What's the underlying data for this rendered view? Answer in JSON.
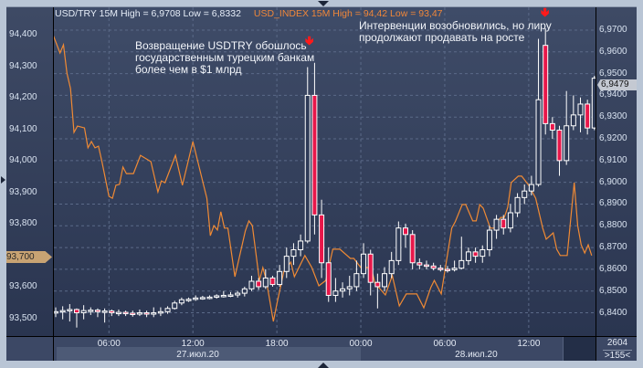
{
  "header": {
    "primary": "USD/TRY 15M High = 6,9708 Low = 6,8332",
    "secondary": "USD_INDEX 15M High = 94,42 Low = 93,47"
  },
  "annotations": [
    {
      "text": "Возвращение USDTRY обошлось\nгосударственным турецким банкам\nболее чем в $1 млрд",
      "icon": "red-down-arrow"
    },
    {
      "text": "Интервенции возобновились, но лиру\nпродолжают продавать на росте",
      "icon": "red-down-arrow"
    }
  ],
  "footer": {
    "bar_count": "2604",
    "visible_bars": ">155<"
  },
  "colors": {
    "candle_up": "#ffffff",
    "candle_down": "#e8174a",
    "index_line": "#f08a34",
    "background": "#34405c",
    "grid": "#5b6a88"
  },
  "chart_data": {
    "type": "candlestick+line",
    "title": "",
    "grid": true,
    "x_ticks": [
      "06:00",
      "12:00",
      "18:00",
      "00:00",
      "06:00",
      "12:00"
    ],
    "x_tick_times": [
      "27.07 06:00",
      "27.07 12:00",
      "27.07 18:00",
      "28.07 00:00",
      "28.07 06:00",
      "28.07 12:00"
    ],
    "date_labels": [
      {
        "text": "27.июл.20"
      },
      {
        "text": "28.июл.20"
      }
    ],
    "x_range": [
      "27.07 02:00",
      "28.07 16:30"
    ],
    "right_axis": {
      "series": "USD/TRY",
      "range": [
        6.8332,
        6.9708
      ],
      "ticks": [
        "6,9700",
        "6,9600",
        "6,9500",
        "6,9400",
        "6,9300",
        "6,9200",
        "6,9100",
        "6,9000",
        "6,8900",
        "6,8800",
        "6,8700",
        "6,8600",
        "6,8500",
        "6,8400"
      ],
      "tick_values": [
        6.97,
        6.96,
        6.95,
        6.94,
        6.93,
        6.92,
        6.91,
        6.9,
        6.89,
        6.88,
        6.87,
        6.86,
        6.85,
        6.84
      ],
      "last_value_label": "6,9479"
    },
    "left_axis": {
      "series": "USD_INDEX",
      "range": [
        93.47,
        94.42
      ],
      "ticks": [
        "94,400",
        "94,300",
        "94,200",
        "94,100",
        "94,000",
        "93,900",
        "93,800",
        "93,700",
        "93,600",
        "93,500"
      ],
      "tick_values": [
        94.4,
        94.3,
        94.2,
        94.1,
        94.0,
        93.9,
        93.8,
        93.7,
        93.6,
        93.5
      ],
      "last_value_label": "93,700"
    },
    "usdtry_candles": [
      [
        "27.07 02:00",
        6.84,
        6.8425,
        6.838,
        6.8405
      ],
      [
        "27.07 02:30",
        6.8405,
        6.843,
        6.837,
        6.841
      ],
      [
        "27.07 03:00",
        6.841,
        6.844,
        6.836,
        6.8415
      ],
      [
        "27.07 03:30",
        6.8415,
        6.842,
        6.8332,
        6.84
      ],
      [
        "27.07 04:00",
        6.84,
        6.8435,
        6.837,
        6.841
      ],
      [
        "27.07 04:30",
        6.841,
        6.8425,
        6.839,
        6.8412
      ],
      [
        "27.07 05:00",
        6.8412,
        6.842,
        6.838,
        6.8405
      ],
      [
        "27.07 05:30",
        6.8405,
        6.842,
        6.8355,
        6.8408
      ],
      [
        "27.07 06:00",
        6.8408,
        6.8415,
        6.8385,
        6.84
      ],
      [
        "27.07 06:30",
        6.84,
        6.8415,
        6.8385,
        6.8402
      ],
      [
        "27.07 07:00",
        6.8402,
        6.841,
        6.8385,
        6.8398
      ],
      [
        "27.07 07:30",
        6.8398,
        6.841,
        6.8382,
        6.8395
      ],
      [
        "27.07 08:00",
        6.8395,
        6.8415,
        6.8385,
        6.84
      ],
      [
        "27.07 08:30",
        6.84,
        6.841,
        6.838,
        6.8395
      ],
      [
        "27.07 09:00",
        6.8395,
        6.8425,
        6.838,
        6.84
      ],
      [
        "27.07 09:30",
        6.84,
        6.8425,
        6.8385,
        6.8405
      ],
      [
        "27.07 10:00",
        6.8405,
        6.843,
        6.8395,
        6.842
      ],
      [
        "27.07 10:30",
        6.842,
        6.8455,
        6.8415,
        6.8445
      ],
      [
        "27.07 11:00",
        6.8445,
        6.847,
        6.8435,
        6.846
      ],
      [
        "27.07 11:30",
        6.846,
        6.847,
        6.845,
        6.8462
      ],
      [
        "27.07 12:00",
        6.8462,
        6.848,
        6.8455,
        6.8468
      ],
      [
        "27.07 12:30",
        6.8468,
        6.8478,
        6.846,
        6.847
      ],
      [
        "27.07 13:00",
        6.847,
        6.848,
        6.8462,
        6.8472
      ],
      [
        "27.07 13:30",
        6.8472,
        6.8485,
        6.8465,
        6.8478
      ],
      [
        "27.07 14:00",
        6.8478,
        6.85,
        6.847,
        6.848
      ],
      [
        "27.07 14:30",
        6.848,
        6.8495,
        6.8472,
        6.8482
      ],
      [
        "27.07 15:00",
        6.8482,
        6.85,
        6.847,
        6.849
      ],
      [
        "27.07 15:30",
        6.849,
        6.852,
        6.8475,
        6.851
      ],
      [
        "27.07 16:00",
        6.851,
        6.857,
        6.85,
        6.8545
      ],
      [
        "27.07 16:30",
        6.8545,
        6.856,
        6.8505,
        6.852
      ],
      [
        "27.07 17:00",
        6.852,
        6.86,
        6.851,
        6.856
      ],
      [
        "27.07 17:30",
        6.856,
        6.857,
        6.852,
        6.853
      ],
      [
        "27.07 18:00",
        6.853,
        6.862,
        6.852,
        6.859
      ],
      [
        "27.07 18:30",
        6.859,
        6.87,
        6.856,
        6.866
      ],
      [
        "27.07 19:00",
        6.866,
        6.872,
        6.862,
        6.869
      ],
      [
        "27.07 19:30",
        6.869,
        6.876,
        6.866,
        6.873
      ],
      [
        "27.07 20:00",
        6.873,
        6.953,
        6.872,
        6.94
      ],
      [
        "27.07 20:30",
        6.94,
        6.955,
        6.876,
        6.885
      ],
      [
        "27.07 21:00",
        6.885,
        6.892,
        6.856,
        6.863
      ],
      [
        "27.07 21:30",
        6.863,
        6.87,
        6.845,
        6.848
      ],
      [
        "27.07 22:00",
        6.848,
        6.856,
        6.845,
        6.85
      ],
      [
        "27.07 22:30",
        6.85,
        6.854,
        6.847,
        6.851
      ],
      [
        "27.07 23:00",
        6.851,
        6.857,
        6.848,
        6.852
      ],
      [
        "27.07 23:30",
        6.852,
        6.864,
        6.85,
        6.858
      ],
      [
        "28.07 00:00",
        6.858,
        6.872,
        6.856,
        6.867
      ],
      [
        "28.07 00:30",
        6.867,
        6.869,
        6.848,
        6.854
      ],
      [
        "28.07 01:00",
        6.854,
        6.858,
        6.842,
        6.852
      ],
      [
        "28.07 01:30",
        6.852,
        6.861,
        6.85,
        6.858
      ],
      [
        "28.07 02:00",
        6.858,
        6.868,
        6.856,
        6.864
      ],
      [
        "28.07 02:30",
        6.864,
        6.882,
        6.862,
        6.879
      ],
      [
        "28.07 03:00",
        6.879,
        6.881,
        6.87,
        6.876
      ],
      [
        "28.07 03:30",
        6.876,
        6.878,
        6.86,
        6.863
      ],
      [
        "28.07 04:00",
        6.863,
        6.865,
        6.86,
        6.862
      ],
      [
        "28.07 04:30",
        6.862,
        6.864,
        6.86,
        6.8615
      ],
      [
        "28.07 05:00",
        6.8615,
        6.863,
        6.8595,
        6.8605
      ],
      [
        "28.07 05:30",
        6.8605,
        6.862,
        6.859,
        6.86
      ],
      [
        "28.07 06:00",
        6.86,
        6.8615,
        6.8585,
        6.8598
      ],
      [
        "28.07 06:30",
        6.8598,
        6.864,
        6.859,
        6.8605
      ],
      [
        "28.07 07:00",
        6.8605,
        6.875,
        6.86,
        6.864
      ],
      [
        "28.07 07:30",
        6.864,
        6.87,
        6.862,
        6.868
      ],
      [
        "28.07 08:00",
        6.868,
        6.87,
        6.863,
        6.866
      ],
      [
        "28.07 08:30",
        6.866,
        6.871,
        6.863,
        6.869
      ],
      [
        "28.07 09:00",
        6.869,
        6.88,
        6.866,
        6.878
      ],
      [
        "28.07 09:30",
        6.878,
        6.885,
        6.874,
        6.883
      ],
      [
        "28.07 10:00",
        6.883,
        6.885,
        6.876,
        6.879
      ],
      [
        "28.07 10:30",
        6.879,
        6.89,
        6.877,
        6.886
      ],
      [
        "28.07 11:00",
        6.886,
        6.895,
        6.884,
        6.893
      ],
      [
        "28.07 11:30",
        6.893,
        6.899,
        6.89,
        6.896
      ],
      [
        "28.07 12:00",
        6.896,
        6.903,
        6.894,
        6.899
      ],
      [
        "28.07 12:30",
        6.899,
        6.966,
        6.898,
        6.938
      ],
      [
        "28.07 13:00",
        6.963,
        6.9708,
        6.922,
        6.927
      ],
      [
        "28.07 13:30",
        6.927,
        6.93,
        6.92,
        6.924
      ],
      [
        "28.07 14:00",
        6.924,
        6.926,
        6.903,
        6.91
      ],
      [
        "28.07 14:30",
        6.91,
        6.942,
        6.908,
        6.926
      ],
      [
        "28.07 15:00",
        6.926,
        6.94,
        6.924,
        6.931
      ],
      [
        "28.07 15:30",
        6.931,
        6.939,
        6.923,
        6.936
      ],
      [
        "28.07 16:00",
        6.936,
        6.938,
        6.922,
        6.925
      ],
      [
        "28.07 16:30",
        6.925,
        6.949,
        6.924,
        6.9479
      ]
    ],
    "usd_index_line": [
      [
        "27.07 02:00",
        94.4
      ],
      [
        "27.07 02:30",
        94.342
      ],
      [
        "27.07 02:45",
        94.368
      ],
      [
        "27.07 03:00",
        94.278
      ],
      [
        "27.07 03:15",
        94.229
      ],
      [
        "27.07 03:30",
        94.09
      ],
      [
        "27.07 03:45",
        94.11
      ],
      [
        "27.07 04:15",
        94.104
      ],
      [
        "27.07 04:30",
        94.041
      ],
      [
        "27.07 04:45",
        94.061
      ],
      [
        "27.07 05:00",
        94.041
      ],
      [
        "27.07 05:15",
        94.046
      ],
      [
        "27.07 05:30",
        93.997
      ],
      [
        "27.07 06:00",
        93.887
      ],
      [
        "27.07 06:15",
        93.881
      ],
      [
        "27.07 06:30",
        93.922
      ],
      [
        "27.07 06:45",
        93.925
      ],
      [
        "27.07 07:00",
        93.98
      ],
      [
        "27.07 07:15",
        93.959
      ],
      [
        "27.07 07:45",
        93.959
      ],
      [
        "27.07 08:15",
        94.017
      ],
      [
        "27.07 09:00",
        93.997
      ],
      [
        "27.07 09:30",
        93.901
      ],
      [
        "27.07 09:45",
        93.936
      ],
      [
        "27.07 10:00",
        93.93
      ],
      [
        "27.07 10:45",
        94.017
      ],
      [
        "27.07 11:15",
        93.922
      ],
      [
        "27.07 12:00",
        94.061
      ],
      [
        "27.07 12:45",
        93.925
      ],
      [
        "27.07 13:00",
        93.881
      ],
      [
        "27.07 13:15",
        93.762
      ],
      [
        "27.07 13:30",
        93.794
      ],
      [
        "27.07 13:45",
        93.78
      ],
      [
        "27.07 14:00",
        93.838
      ],
      [
        "27.07 14:15",
        93.786
      ],
      [
        "27.07 14:30",
        93.786
      ],
      [
        "27.07 15:00",
        93.632
      ],
      [
        "27.07 15:45",
        93.777
      ],
      [
        "27.07 16:00",
        93.809
      ],
      [
        "27.07 16:15",
        93.794
      ],
      [
        "27.07 16:45",
        93.62
      ],
      [
        "27.07 17:00",
        93.661
      ],
      [
        "27.07 17:15",
        93.62
      ],
      [
        "27.07 17:45",
        93.49
      ],
      [
        "27.07 18:00",
        93.545
      ],
      [
        "27.07 18:30",
        93.649
      ],
      [
        "27.07 19:00",
        93.678
      ],
      [
        "27.07 19:15",
        93.632
      ],
      [
        "27.07 20:00",
        93.699
      ],
      [
        "27.07 20:30",
        93.661
      ],
      [
        "27.07 21:00",
        93.603
      ],
      [
        "27.07 21:30",
        93.62
      ],
      [
        "27.07 22:00",
        93.719
      ],
      [
        "27.07 22:30",
        93.719
      ],
      [
        "27.07 23:15",
        93.69
      ],
      [
        "27.07 23:30",
        93.69
      ],
      [
        "28.07 00:00",
        93.661
      ],
      [
        "28.07 00:45",
        93.661
      ],
      [
        "28.07 01:00",
        93.612
      ],
      [
        "28.07 01:45",
        93.574
      ],
      [
        "28.07 02:15",
        93.635
      ],
      [
        "28.07 02:45",
        93.539
      ],
      [
        "28.07 03:15",
        93.577
      ],
      [
        "28.07 04:00",
        93.577
      ],
      [
        "28.07 04:30",
        93.533
      ],
      [
        "28.07 05:00",
        93.597
      ],
      [
        "28.07 05:15",
        93.62
      ],
      [
        "28.07 05:45",
        93.577
      ],
      [
        "28.07 06:00",
        93.649
      ],
      [
        "28.07 06:30",
        93.786
      ],
      [
        "28.07 06:45",
        93.806
      ],
      [
        "28.07 07:15",
        93.861
      ],
      [
        "28.07 07:30",
        93.861
      ],
      [
        "28.07 08:00",
        93.809
      ],
      [
        "28.07 08:15",
        93.809
      ],
      [
        "28.07 08:30",
        93.861
      ],
      [
        "28.07 08:45",
        93.849
      ],
      [
        "28.07 09:15",
        93.786
      ],
      [
        "28.07 09:30",
        93.786
      ],
      [
        "28.07 10:00",
        93.82
      ],
      [
        "28.07 10:15",
        93.82
      ],
      [
        "28.07 10:30",
        93.852
      ],
      [
        "28.07 10:45",
        93.93
      ],
      [
        "28.07 11:15",
        93.951
      ],
      [
        "28.07 11:30",
        93.951
      ],
      [
        "28.07 12:00",
        93.922
      ],
      [
        "28.07 12:30",
        93.881
      ],
      [
        "28.07 13:00",
        93.786
      ],
      [
        "28.07 13:15",
        93.751
      ],
      [
        "28.07 13:45",
        93.771
      ],
      [
        "28.07 14:00",
        93.719
      ],
      [
        "28.07 14:15",
        93.699
      ],
      [
        "28.07 14:45",
        93.699
      ],
      [
        "28.07 15:15",
        93.93
      ],
      [
        "28.07 15:30",
        93.794
      ],
      [
        "28.07 15:45",
        93.733
      ],
      [
        "28.07 16:00",
        93.707
      ],
      [
        "28.07 16:15",
        93.733
      ],
      [
        "28.07 16:30",
        93.699
      ]
    ]
  }
}
